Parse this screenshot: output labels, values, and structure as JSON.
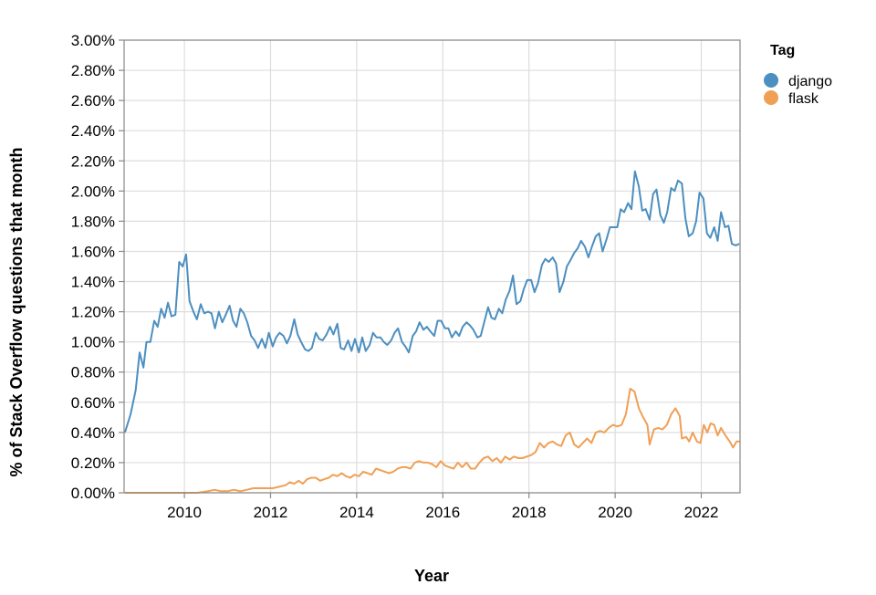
{
  "chart_data": {
    "type": "line",
    "xlabel": "Year",
    "ylabel": "% of Stack Overflow questions that month",
    "legend_title": "Tag",
    "legend_position": "top-right",
    "grid": true,
    "xlim": [
      2008.6,
      2022.9
    ],
    "ylim": [
      0,
      3.0
    ],
    "x_ticks": [
      "2010",
      "2012",
      "2014",
      "2016",
      "2018",
      "2020",
      "2022"
    ],
    "y_ticks": [
      "0.00%",
      "0.20%",
      "0.40%",
      "0.60%",
      "0.80%",
      "1.00%",
      "1.20%",
      "1.40%",
      "1.60%",
      "1.80%",
      "2.00%",
      "2.20%",
      "2.40%",
      "2.60%",
      "2.80%",
      "3.00%"
    ],
    "series": [
      {
        "name": "django",
        "color": "#4c8fc0",
        "points": [
          [
            2008.62,
            0.4
          ],
          [
            2008.75,
            0.52
          ],
          [
            2008.87,
            0.68
          ],
          [
            2008.96,
            0.93
          ],
          [
            2009.05,
            0.83
          ],
          [
            2009.12,
            1.0
          ],
          [
            2009.21,
            1.0
          ],
          [
            2009.3,
            1.14
          ],
          [
            2009.38,
            1.1
          ],
          [
            2009.46,
            1.22
          ],
          [
            2009.54,
            1.16
          ],
          [
            2009.62,
            1.26
          ],
          [
            2009.7,
            1.17
          ],
          [
            2009.79,
            1.18
          ],
          [
            2009.88,
            1.53
          ],
          [
            2009.96,
            1.5
          ],
          [
            2010.04,
            1.58
          ],
          [
            2010.12,
            1.27
          ],
          [
            2010.21,
            1.2
          ],
          [
            2010.29,
            1.15
          ],
          [
            2010.38,
            1.25
          ],
          [
            2010.46,
            1.19
          ],
          [
            2010.55,
            1.2
          ],
          [
            2010.63,
            1.19
          ],
          [
            2010.71,
            1.09
          ],
          [
            2010.8,
            1.2
          ],
          [
            2010.88,
            1.13
          ],
          [
            2010.96,
            1.18
          ],
          [
            2011.05,
            1.24
          ],
          [
            2011.13,
            1.14
          ],
          [
            2011.21,
            1.1
          ],
          [
            2011.3,
            1.22
          ],
          [
            2011.38,
            1.19
          ],
          [
            2011.46,
            1.13
          ],
          [
            2011.55,
            1.04
          ],
          [
            2011.63,
            1.01
          ],
          [
            2011.71,
            0.96
          ],
          [
            2011.8,
            1.02
          ],
          [
            2011.88,
            0.96
          ],
          [
            2011.96,
            1.06
          ],
          [
            2012.05,
            0.97
          ],
          [
            2012.13,
            1.03
          ],
          [
            2012.21,
            1.06
          ],
          [
            2012.3,
            1.04
          ],
          [
            2012.38,
            0.99
          ],
          [
            2012.46,
            1.04
          ],
          [
            2012.55,
            1.15
          ],
          [
            2012.63,
            1.05
          ],
          [
            2012.71,
            1.0
          ],
          [
            2012.8,
            0.95
          ],
          [
            2012.88,
            0.94
          ],
          [
            2012.96,
            0.96
          ],
          [
            2013.05,
            1.06
          ],
          [
            2013.13,
            1.02
          ],
          [
            2013.21,
            1.01
          ],
          [
            2013.3,
            1.05
          ],
          [
            2013.38,
            1.1
          ],
          [
            2013.46,
            1.05
          ],
          [
            2013.55,
            1.12
          ],
          [
            2013.63,
            0.96
          ],
          [
            2013.71,
            0.95
          ],
          [
            2013.8,
            1.01
          ],
          [
            2013.88,
            0.94
          ],
          [
            2013.96,
            1.02
          ],
          [
            2014.05,
            0.93
          ],
          [
            2014.13,
            1.03
          ],
          [
            2014.21,
            0.94
          ],
          [
            2014.3,
            0.98
          ],
          [
            2014.38,
            1.06
          ],
          [
            2014.46,
            1.03
          ],
          [
            2014.55,
            1.03
          ],
          [
            2014.63,
            1.0
          ],
          [
            2014.71,
            0.98
          ],
          [
            2014.8,
            1.01
          ],
          [
            2014.88,
            1.06
          ],
          [
            2014.96,
            1.09
          ],
          [
            2015.05,
            1.0
          ],
          [
            2015.13,
            0.97
          ],
          [
            2015.21,
            0.93
          ],
          [
            2015.3,
            1.04
          ],
          [
            2015.38,
            1.07
          ],
          [
            2015.46,
            1.13
          ],
          [
            2015.55,
            1.08
          ],
          [
            2015.63,
            1.1
          ],
          [
            2015.71,
            1.07
          ],
          [
            2015.8,
            1.04
          ],
          [
            2015.88,
            1.14
          ],
          [
            2015.96,
            1.14
          ],
          [
            2016.05,
            1.09
          ],
          [
            2016.13,
            1.09
          ],
          [
            2016.21,
            1.03
          ],
          [
            2016.3,
            1.07
          ],
          [
            2016.38,
            1.04
          ],
          [
            2016.46,
            1.1
          ],
          [
            2016.55,
            1.13
          ],
          [
            2016.63,
            1.11
          ],
          [
            2016.71,
            1.08
          ],
          [
            2016.8,
            1.03
          ],
          [
            2016.88,
            1.04
          ],
          [
            2016.96,
            1.13
          ],
          [
            2017.05,
            1.23
          ],
          [
            2017.13,
            1.16
          ],
          [
            2017.21,
            1.15
          ],
          [
            2017.3,
            1.22
          ],
          [
            2017.38,
            1.19
          ],
          [
            2017.46,
            1.28
          ],
          [
            2017.55,
            1.34
          ],
          [
            2017.63,
            1.44
          ],
          [
            2017.71,
            1.25
          ],
          [
            2017.8,
            1.27
          ],
          [
            2017.88,
            1.35
          ],
          [
            2017.96,
            1.41
          ],
          [
            2018.05,
            1.41
          ],
          [
            2018.13,
            1.33
          ],
          [
            2018.21,
            1.39
          ],
          [
            2018.3,
            1.51
          ],
          [
            2018.38,
            1.55
          ],
          [
            2018.46,
            1.53
          ],
          [
            2018.55,
            1.56
          ],
          [
            2018.63,
            1.52
          ],
          [
            2018.71,
            1.33
          ],
          [
            2018.8,
            1.4
          ],
          [
            2018.88,
            1.5
          ],
          [
            2018.96,
            1.54
          ],
          [
            2019.05,
            1.59
          ],
          [
            2019.13,
            1.62
          ],
          [
            2019.21,
            1.67
          ],
          [
            2019.3,
            1.63
          ],
          [
            2019.38,
            1.56
          ],
          [
            2019.46,
            1.63
          ],
          [
            2019.55,
            1.7
          ],
          [
            2019.63,
            1.72
          ],
          [
            2019.71,
            1.6
          ],
          [
            2019.8,
            1.68
          ],
          [
            2019.88,
            1.76
          ],
          [
            2019.96,
            1.76
          ],
          [
            2020.05,
            1.76
          ],
          [
            2020.13,
            1.88
          ],
          [
            2020.21,
            1.86
          ],
          [
            2020.3,
            1.92
          ],
          [
            2020.38,
            1.88
          ],
          [
            2020.46,
            2.13
          ],
          [
            2020.55,
            2.03
          ],
          [
            2020.63,
            1.87
          ],
          [
            2020.71,
            1.88
          ],
          [
            2020.8,
            1.81
          ],
          [
            2020.88,
            1.98
          ],
          [
            2020.96,
            2.01
          ],
          [
            2021.05,
            1.84
          ],
          [
            2021.13,
            1.79
          ],
          [
            2021.21,
            1.86
          ],
          [
            2021.3,
            2.02
          ],
          [
            2021.38,
            2.0
          ],
          [
            2021.46,
            2.07
          ],
          [
            2021.55,
            2.05
          ],
          [
            2021.63,
            1.82
          ],
          [
            2021.71,
            1.7
          ],
          [
            2021.8,
            1.72
          ],
          [
            2021.88,
            1.8
          ],
          [
            2021.96,
            1.99
          ],
          [
            2022.05,
            1.95
          ],
          [
            2022.13,
            1.72
          ],
          [
            2022.21,
            1.69
          ],
          [
            2022.3,
            1.76
          ],
          [
            2022.38,
            1.67
          ],
          [
            2022.46,
            1.86
          ],
          [
            2022.55,
            1.76
          ],
          [
            2022.63,
            1.77
          ],
          [
            2022.71,
            1.65
          ],
          [
            2022.8,
            1.64
          ],
          [
            2022.88,
            1.65
          ]
        ]
      },
      {
        "name": "flask",
        "color": "#f0a055",
        "points": [
          [
            2008.62,
            0.0
          ],
          [
            2009.5,
            0.0
          ],
          [
            2010.3,
            0.0
          ],
          [
            2010.55,
            0.01
          ],
          [
            2010.7,
            0.02
          ],
          [
            2010.85,
            0.01
          ],
          [
            2011.0,
            0.01
          ],
          [
            2011.15,
            0.02
          ],
          [
            2011.3,
            0.01
          ],
          [
            2011.45,
            0.02
          ],
          [
            2011.6,
            0.03
          ],
          [
            2011.75,
            0.03
          ],
          [
            2011.9,
            0.03
          ],
          [
            2012.05,
            0.03
          ],
          [
            2012.2,
            0.04
          ],
          [
            2012.35,
            0.05
          ],
          [
            2012.45,
            0.07
          ],
          [
            2012.55,
            0.06
          ],
          [
            2012.65,
            0.08
          ],
          [
            2012.75,
            0.06
          ],
          [
            2012.85,
            0.09
          ],
          [
            2012.95,
            0.1
          ],
          [
            2013.05,
            0.1
          ],
          [
            2013.15,
            0.08
          ],
          [
            2013.25,
            0.09
          ],
          [
            2013.35,
            0.1
          ],
          [
            2013.45,
            0.12
          ],
          [
            2013.55,
            0.11
          ],
          [
            2013.65,
            0.13
          ],
          [
            2013.75,
            0.11
          ],
          [
            2013.85,
            0.1
          ],
          [
            2013.95,
            0.12
          ],
          [
            2014.05,
            0.11
          ],
          [
            2014.15,
            0.14
          ],
          [
            2014.25,
            0.13
          ],
          [
            2014.35,
            0.12
          ],
          [
            2014.45,
            0.16
          ],
          [
            2014.55,
            0.15
          ],
          [
            2014.65,
            0.14
          ],
          [
            2014.75,
            0.13
          ],
          [
            2014.85,
            0.14
          ],
          [
            2014.95,
            0.16
          ],
          [
            2015.05,
            0.17
          ],
          [
            2015.15,
            0.17
          ],
          [
            2015.25,
            0.16
          ],
          [
            2015.35,
            0.2
          ],
          [
            2015.45,
            0.21
          ],
          [
            2015.55,
            0.2
          ],
          [
            2015.65,
            0.2
          ],
          [
            2015.75,
            0.19
          ],
          [
            2015.85,
            0.17
          ],
          [
            2015.95,
            0.21
          ],
          [
            2016.05,
            0.18
          ],
          [
            2016.15,
            0.17
          ],
          [
            2016.25,
            0.16
          ],
          [
            2016.35,
            0.2
          ],
          [
            2016.45,
            0.17
          ],
          [
            2016.55,
            0.2
          ],
          [
            2016.65,
            0.16
          ],
          [
            2016.75,
            0.16
          ],
          [
            2016.85,
            0.2
          ],
          [
            2016.95,
            0.23
          ],
          [
            2017.05,
            0.24
          ],
          [
            2017.15,
            0.21
          ],
          [
            2017.25,
            0.23
          ],
          [
            2017.35,
            0.2
          ],
          [
            2017.45,
            0.24
          ],
          [
            2017.55,
            0.22
          ],
          [
            2017.65,
            0.24
          ],
          [
            2017.75,
            0.23
          ],
          [
            2017.85,
            0.23
          ],
          [
            2017.95,
            0.24
          ],
          [
            2018.05,
            0.25
          ],
          [
            2018.15,
            0.27
          ],
          [
            2018.25,
            0.33
          ],
          [
            2018.35,
            0.3
          ],
          [
            2018.45,
            0.33
          ],
          [
            2018.55,
            0.34
          ],
          [
            2018.65,
            0.32
          ],
          [
            2018.75,
            0.31
          ],
          [
            2018.85,
            0.38
          ],
          [
            2018.95,
            0.4
          ],
          [
            2019.05,
            0.32
          ],
          [
            2019.15,
            0.3
          ],
          [
            2019.25,
            0.33
          ],
          [
            2019.35,
            0.36
          ],
          [
            2019.45,
            0.33
          ],
          [
            2019.55,
            0.4
          ],
          [
            2019.65,
            0.41
          ],
          [
            2019.75,
            0.4
          ],
          [
            2019.85,
            0.43
          ],
          [
            2019.95,
            0.45
          ],
          [
            2020.05,
            0.44
          ],
          [
            2020.15,
            0.45
          ],
          [
            2020.25,
            0.52
          ],
          [
            2020.35,
            0.69
          ],
          [
            2020.45,
            0.67
          ],
          [
            2020.55,
            0.56
          ],
          [
            2020.65,
            0.5
          ],
          [
            2020.75,
            0.45
          ],
          [
            2020.8,
            0.32
          ],
          [
            2020.9,
            0.42
          ],
          [
            2021.0,
            0.43
          ],
          [
            2021.1,
            0.42
          ],
          [
            2021.2,
            0.45
          ],
          [
            2021.3,
            0.52
          ],
          [
            2021.4,
            0.56
          ],
          [
            2021.5,
            0.51
          ],
          [
            2021.55,
            0.36
          ],
          [
            2021.65,
            0.37
          ],
          [
            2021.72,
            0.34
          ],
          [
            2021.8,
            0.4
          ],
          [
            2021.9,
            0.34
          ],
          [
            2021.98,
            0.33
          ],
          [
            2022.06,
            0.45
          ],
          [
            2022.14,
            0.4
          ],
          [
            2022.22,
            0.46
          ],
          [
            2022.3,
            0.45
          ],
          [
            2022.38,
            0.38
          ],
          [
            2022.46,
            0.43
          ],
          [
            2022.56,
            0.38
          ],
          [
            2022.66,
            0.34
          ],
          [
            2022.74,
            0.3
          ],
          [
            2022.82,
            0.34
          ],
          [
            2022.9,
            0.34
          ]
        ]
      }
    ]
  }
}
